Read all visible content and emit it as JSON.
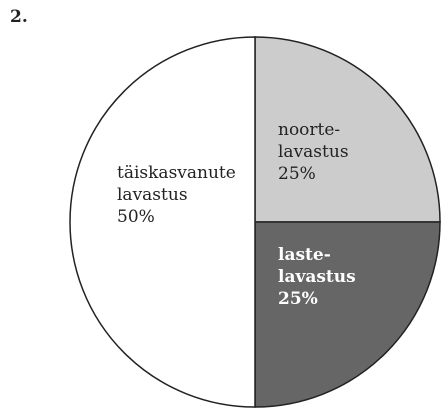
{
  "figure_number": "2.",
  "chart_data": {
    "type": "pie",
    "slices": [
      {
        "label_lines": [
          "noorte-",
          "lavastus"
        ],
        "value": 25,
        "value_text": "25%",
        "color": "#cccccc",
        "text_color": "#222222",
        "bold": false
      },
      {
        "label_lines": [
          "laste-",
          "lavastus"
        ],
        "value": 25,
        "value_text": "25%",
        "color": "#666666",
        "text_color": "#ffffff",
        "bold": true
      },
      {
        "label_lines": [
          "täiskasvanute",
          "lavastus"
        ],
        "value": 50,
        "value_text": "50%",
        "color": "#ffffff",
        "text_color": "#222222",
        "bold": false
      }
    ],
    "start": "top",
    "direction": "clockwise"
  }
}
